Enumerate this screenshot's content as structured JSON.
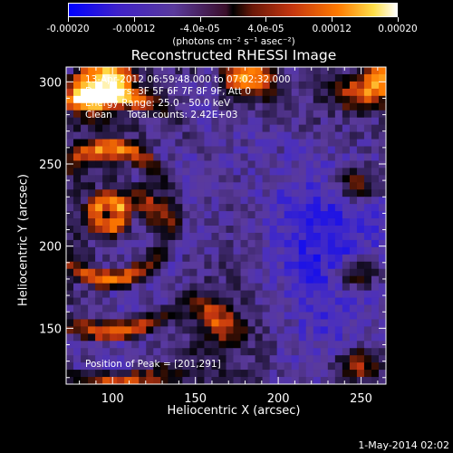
{
  "colorbar": {
    "tick_labels": [
      "-0.00020",
      "-0.00012",
      "-4.0e-05",
      "4.0e-05",
      "0.00012",
      "0.00020"
    ],
    "tick_values": [
      -0.0002,
      -0.00012,
      -4e-05,
      4e-05,
      0.00012,
      0.0002
    ],
    "range": [
      -0.0002,
      0.0002
    ],
    "units_label": "(photons cm⁻² s⁻¹ asec⁻²)"
  },
  "title": "Reconstructed RHESSI Image",
  "info_lines": [
    "13-Apr-2012 06:59:48.000 to 07:02:32.000",
    "Detectors: 3F 5F 6F 7F 8F 9F, Att 0",
    "Energy Range: 25.0 - 50.0 keV",
    "Clean     Total counts: 2.42E+03"
  ],
  "peak_text": "Position of Peak = [201,291]",
  "timestamp": "1-May-2014 02:02",
  "chart_data": {
    "type": "heatmap",
    "xlabel": "Heliocentric X (arcsec)",
    "ylabel": "Heliocentric Y (arcsec)",
    "xlim": [
      72,
      265
    ],
    "ylim": [
      116,
      309
    ],
    "xticks": [
      100,
      150,
      200,
      250
    ],
    "yticks": [
      150,
      200,
      250,
      300
    ],
    "peak_position": [
      201,
      291
    ],
    "colormap": [
      "#0000ff",
      "#4a2fbf",
      "#5a3a9c",
      "#000000",
      "#c43610",
      "#ff7a00",
      "#ffe04a",
      "#ffffff"
    ]
  }
}
